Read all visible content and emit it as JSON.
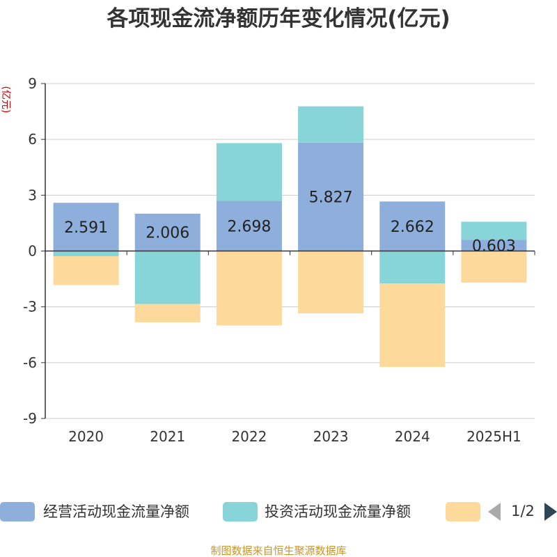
{
  "chart_data": {
    "type": "bar",
    "stacked": true,
    "title": "各项现金流净额历年变化情况(亿元)",
    "ylabel": "(亿元)",
    "categories": [
      "2020",
      "2021",
      "2022",
      "2023",
      "2024",
      "2025H1"
    ],
    "ylim": [
      -9,
      9
    ],
    "yticks": [
      9,
      6,
      3,
      0,
      -3,
      -6,
      -9
    ],
    "ytick_labels": [
      "9",
      "6",
      "3",
      "0",
      "-3",
      "-6",
      "-9"
    ],
    "grid": true,
    "legend_position": "bottom",
    "series": [
      {
        "name": "经营活动现金流量净额",
        "color": "#8eaedb",
        "values": [
          2.591,
          2.006,
          2.698,
          5.827,
          2.662,
          0.603
        ],
        "data_labels": [
          "2.591",
          "2.006",
          "2.698",
          "5.827",
          "2.662",
          "0.603"
        ]
      },
      {
        "name": "投资活动现金流量净额",
        "color": "#87d5d8",
        "values": [
          -0.28,
          -2.85,
          3.1,
          1.95,
          -1.75,
          0.97
        ]
      },
      {
        "color": "#fdd99b",
        "values": [
          -1.55,
          -0.98,
          -4.0,
          -3.35,
          -4.48,
          -1.7
        ]
      }
    ]
  },
  "legend": {
    "page": "1/2"
  },
  "footer": {
    "source": "制图数据来自恒生聚源数据库"
  }
}
